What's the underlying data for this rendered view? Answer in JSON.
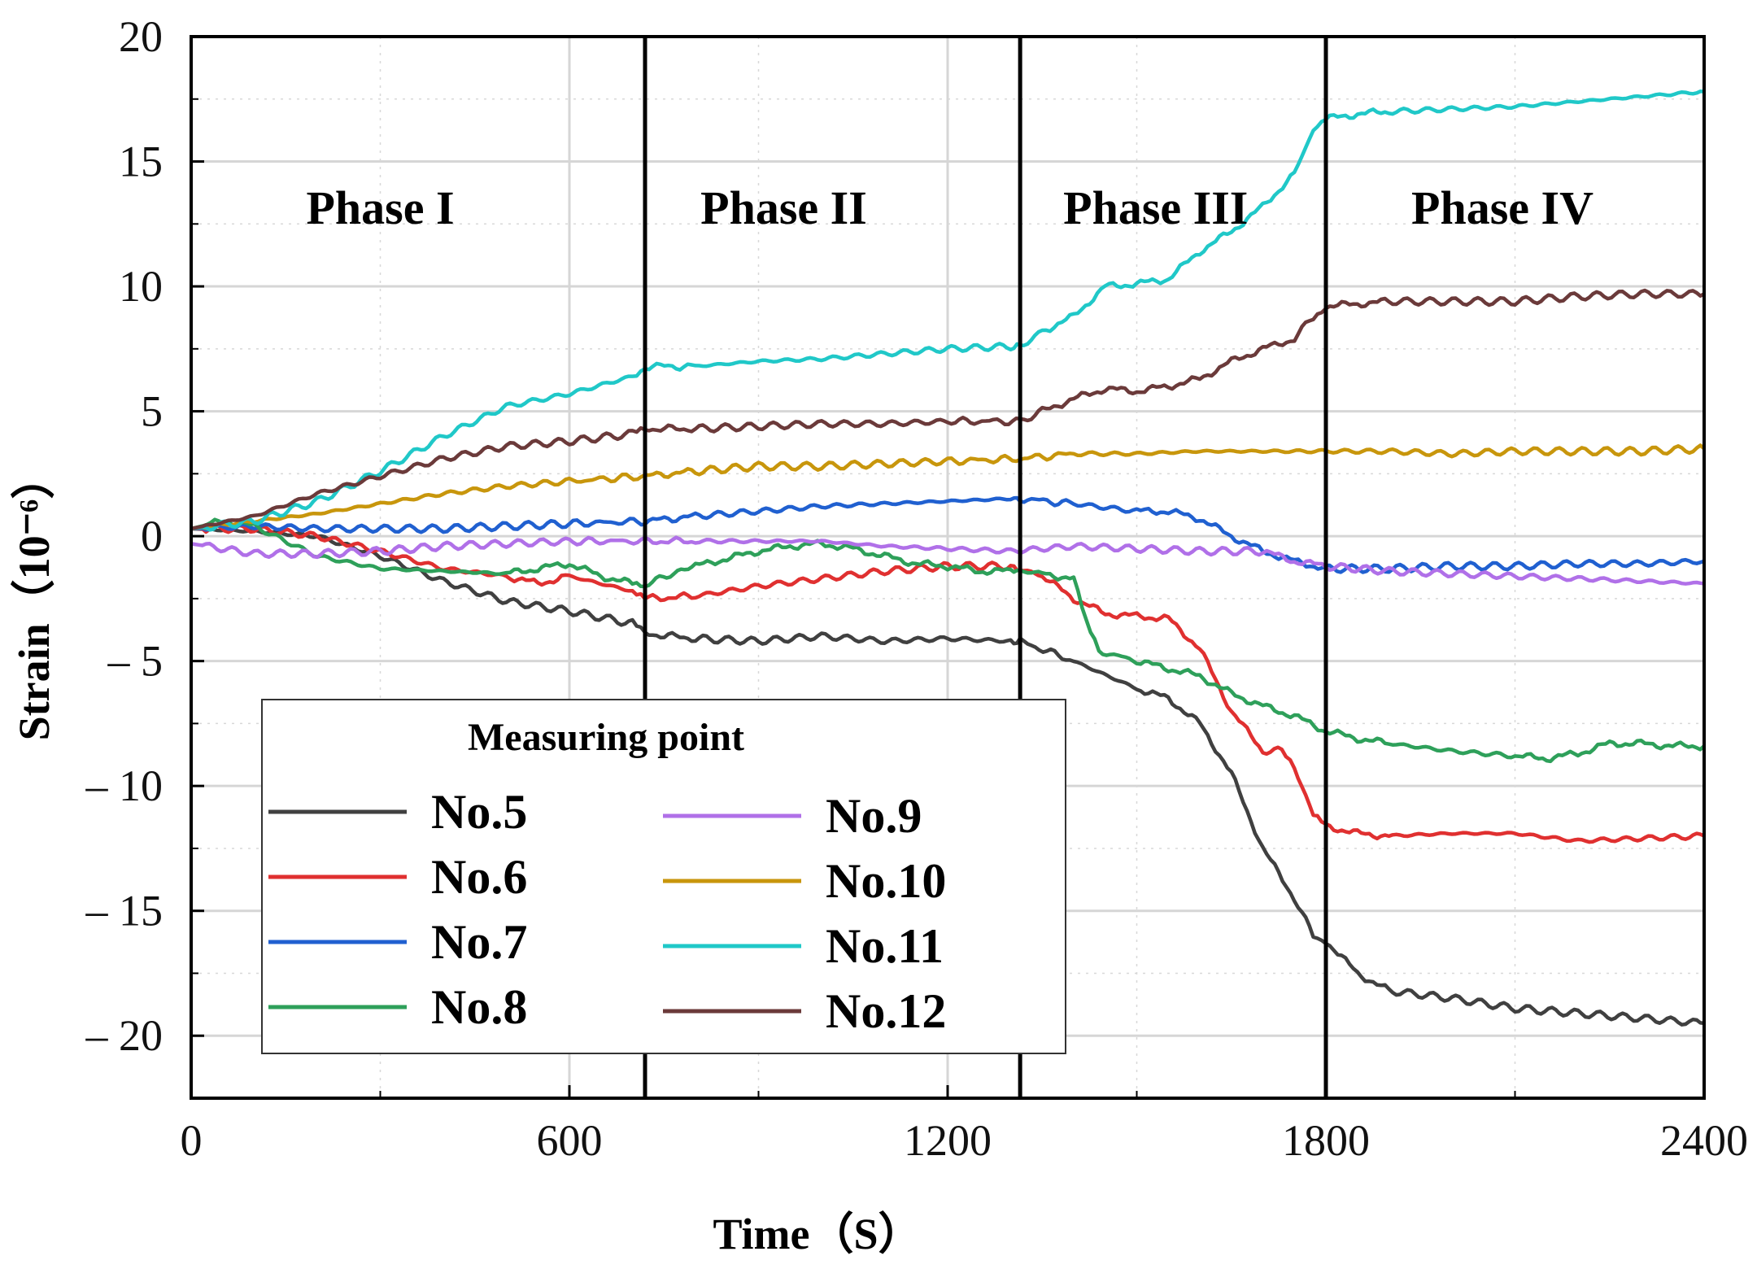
{
  "chart_data": {
    "type": "line",
    "title": "",
    "xlabel": "Time（S）",
    "ylabel": "Strain（10⁻⁶）",
    "xlim": [
      0,
      2400
    ],
    "ylim": [
      -22.5,
      20
    ],
    "x_ticks": [
      0,
      600,
      1200,
      1800,
      2400
    ],
    "y_ticks": [
      20,
      15,
      10,
      5,
      0,
      -5,
      -10,
      -15,
      -20
    ],
    "y_tick_labels": [
      "20",
      "15",
      "10",
      "5",
      "0",
      "– 5",
      "– 10",
      "– 15",
      "– 20"
    ],
    "grid": true,
    "phase_boundaries": [
      720,
      1315,
      1800
    ],
    "phases": [
      {
        "label": "Phase I",
        "x": 300
      },
      {
        "label": "Phase II",
        "x": 940
      },
      {
        "label": "Phase III",
        "x": 1530
      },
      {
        "label": "Phase IV",
        "x": 2080
      }
    ],
    "legend": {
      "title": "Measuring point",
      "position": "bottom-left"
    },
    "series": [
      {
        "name": "No.5",
        "color": "#404040",
        "x": [
          0,
          100,
          200,
          300,
          400,
          500,
          600,
          700,
          720,
          800,
          900,
          1000,
          1100,
          1200,
          1300,
          1315,
          1400,
          1500,
          1550,
          1600,
          1650,
          1700,
          1750,
          1780,
          1800,
          1850,
          1900,
          2000,
          2100,
          2200,
          2300,
          2400
        ],
        "y": [
          0.3,
          0.2,
          0,
          -0.8,
          -1.8,
          -2.6,
          -3.0,
          -3.5,
          -3.9,
          -4.1,
          -4.2,
          -4.0,
          -4.2,
          -4.1,
          -4.2,
          -4.2,
          -5.0,
          -6.1,
          -6.5,
          -7.5,
          -9.5,
          -12.5,
          -14.5,
          -16.0,
          -16.2,
          -17.5,
          -18.2,
          -18.5,
          -18.9,
          -19.1,
          -19.3,
          -19.5
        ]
      },
      {
        "name": "No.6",
        "color": "#e03030",
        "x": [
          0,
          100,
          200,
          300,
          400,
          500,
          550,
          600,
          700,
          720,
          800,
          900,
          1000,
          1100,
          1200,
          1300,
          1315,
          1350,
          1400,
          1450,
          1500,
          1550,
          1600,
          1650,
          1700,
          1730,
          1750,
          1780,
          1800,
          1850,
          1900,
          2000,
          2100,
          2200,
          2300,
          2400
        ],
        "y": [
          0.3,
          0.3,
          0,
          -0.6,
          -1.3,
          -1.6,
          -1.9,
          -1.6,
          -2.2,
          -2.5,
          -2.4,
          -2.0,
          -1.7,
          -1.4,
          -1.2,
          -1.2,
          -1.3,
          -1.6,
          -2.5,
          -3.1,
          -3.2,
          -3.3,
          -4.5,
          -7.0,
          -8.6,
          -8.6,
          -9.2,
          -11.2,
          -11.6,
          -11.9,
          -12.0,
          -11.9,
          -11.9,
          -12.2,
          -12.1,
          -12.0
        ]
      },
      {
        "name": "No.7",
        "color": "#2060d0",
        "x": [
          0,
          100,
          200,
          300,
          400,
          500,
          600,
          720,
          800,
          900,
          1000,
          1100,
          1200,
          1300,
          1315,
          1400,
          1500,
          1550,
          1600,
          1650,
          1700,
          1750,
          1800,
          1900,
          2000,
          2100,
          2200,
          2300,
          2400
        ],
        "y": [
          0.3,
          0.4,
          0.3,
          0.3,
          0.3,
          0.4,
          0.5,
          0.6,
          0.8,
          1.0,
          1.2,
          1.3,
          1.4,
          1.5,
          1.5,
          1.3,
          1.0,
          1.0,
          0.7,
          0.0,
          -0.6,
          -1.0,
          -1.3,
          -1.3,
          -1.2,
          -1.2,
          -1.1,
          -1.1,
          -1.0
        ]
      },
      {
        "name": "No.8",
        "color": "#2ea05a",
        "x": [
          0,
          50,
          100,
          200,
          300,
          400,
          500,
          550,
          600,
          650,
          700,
          720,
          760,
          800,
          850,
          900,
          950,
          1000,
          1050,
          1100,
          1150,
          1200,
          1250,
          1300,
          1315,
          1350,
          1400,
          1420,
          1440,
          1500,
          1550,
          1600,
          1650,
          1700,
          1750,
          1800,
          1850,
          1900,
          2000,
          2100,
          2150,
          2200,
          2250,
          2300,
          2350,
          2400
        ],
        "y": [
          0.3,
          0.6,
          0.4,
          -0.8,
          -1.3,
          -1.4,
          -1.5,
          -1.3,
          -1.1,
          -1.6,
          -1.9,
          -2.0,
          -1.5,
          -1.2,
          -0.9,
          -0.6,
          -0.4,
          -0.3,
          -0.5,
          -0.8,
          -1.1,
          -1.2,
          -1.4,
          -1.4,
          -1.4,
          -1.5,
          -1.7,
          -3.5,
          -4.6,
          -5.0,
          -5.3,
          -5.6,
          -6.3,
          -6.8,
          -7.2,
          -7.8,
          -8.1,
          -8.3,
          -8.6,
          -8.8,
          -8.9,
          -8.7,
          -8.3,
          -8.3,
          -8.4,
          -8.4
        ]
      },
      {
        "name": "No.9",
        "color": "#b070e8",
        "x": [
          0,
          100,
          200,
          300,
          400,
          500,
          600,
          720,
          800,
          900,
          1000,
          1100,
          1200,
          1300,
          1400,
          1500,
          1600,
          1700,
          1750,
          1800,
          1900,
          2000,
          2100,
          2200,
          2300,
          2400
        ],
        "y": [
          -0.3,
          -0.7,
          -0.7,
          -0.6,
          -0.4,
          -0.3,
          -0.2,
          -0.2,
          -0.2,
          -0.2,
          -0.2,
          -0.4,
          -0.5,
          -0.6,
          -0.4,
          -0.5,
          -0.6,
          -0.6,
          -1.0,
          -1.2,
          -1.4,
          -1.5,
          -1.6,
          -1.7,
          -1.8,
          -1.9
        ]
      },
      {
        "name": "No.10",
        "color": "#c8960c",
        "x": [
          0,
          100,
          200,
          300,
          400,
          500,
          600,
          720,
          800,
          900,
          1000,
          1100,
          1200,
          1315,
          1400,
          1500,
          1600,
          1700,
          1800,
          1900,
          2000,
          2100,
          2200,
          2300,
          2400
        ],
        "y": [
          0.3,
          0.6,
          0.9,
          1.3,
          1.7,
          2.0,
          2.2,
          2.4,
          2.6,
          2.8,
          2.8,
          2.9,
          3.0,
          3.1,
          3.3,
          3.3,
          3.4,
          3.4,
          3.4,
          3.4,
          3.3,
          3.4,
          3.4,
          3.4,
          3.5
        ]
      },
      {
        "name": "No.11",
        "color": "#20c8c8",
        "x": [
          0,
          100,
          200,
          300,
          400,
          500,
          600,
          700,
          720,
          800,
          900,
          1000,
          1100,
          1200,
          1300,
          1315,
          1350,
          1400,
          1450,
          1500,
          1550,
          1600,
          1650,
          1700,
          1750,
          1780,
          1800,
          1850,
          1900,
          2000,
          2100,
          2200,
          2300,
          2400
        ],
        "y": [
          0.3,
          0.6,
          1.4,
          2.6,
          4.0,
          5.2,
          5.7,
          6.4,
          6.8,
          6.8,
          7.0,
          7.1,
          7.3,
          7.5,
          7.6,
          7.6,
          8.2,
          8.8,
          10.0,
          10.1,
          10.3,
          11.4,
          12.2,
          13.2,
          14.5,
          16.3,
          16.7,
          16.9,
          17.0,
          17.1,
          17.2,
          17.4,
          17.6,
          17.8
        ]
      },
      {
        "name": "No.12",
        "color": "#6b3a3a",
        "x": [
          0,
          100,
          200,
          300,
          400,
          500,
          600,
          700,
          720,
          800,
          900,
          1000,
          1100,
          1200,
          1315,
          1350,
          1400,
          1450,
          1500,
          1550,
          1600,
          1650,
          1700,
          1750,
          1780,
          1800,
          1850,
          1900,
          2000,
          2100,
          2200,
          2300,
          2400
        ],
        "y": [
          0.3,
          0.8,
          1.7,
          2.4,
          3.1,
          3.6,
          3.8,
          4.1,
          4.3,
          4.3,
          4.4,
          4.5,
          4.5,
          4.6,
          4.6,
          5.0,
          5.5,
          5.9,
          5.8,
          6.0,
          6.3,
          7.0,
          7.5,
          7.9,
          8.8,
          9.2,
          9.3,
          9.4,
          9.4,
          9.4,
          9.6,
          9.7,
          9.7
        ]
      }
    ]
  }
}
